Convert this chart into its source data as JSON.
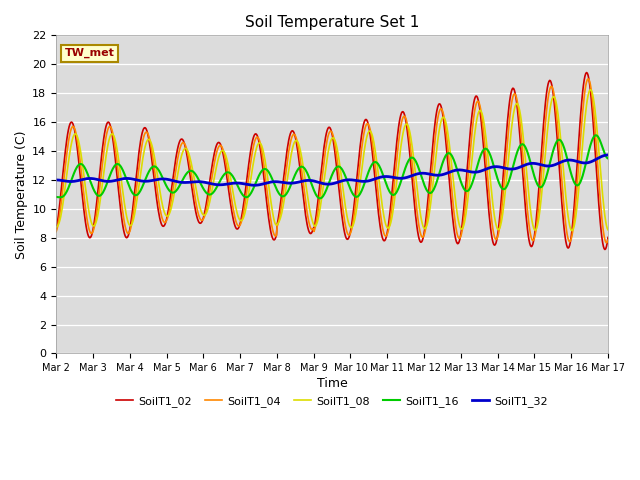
{
  "title": "Soil Temperature Set 1",
  "xlabel": "Time",
  "ylabel": "Soil Temperature (C)",
  "ylim": [
    0,
    22
  ],
  "yticks": [
    0,
    2,
    4,
    6,
    8,
    10,
    12,
    14,
    16,
    18,
    20,
    22
  ],
  "bg_color": "#dcdcdc",
  "fig_color": "#ffffff",
  "annotation_text": "TW_met",
  "annotation_color": "#990000",
  "annotation_bg": "#ffffcc",
  "annotation_border": "#aa8800",
  "series_colors": {
    "SoilT1_02": "#cc0000",
    "SoilT1_04": "#ff8800",
    "SoilT1_08": "#dddd00",
    "SoilT1_16": "#00cc00",
    "SoilT1_32": "#0000cc"
  },
  "series_linewidths": {
    "SoilT1_02": 1.2,
    "SoilT1_04": 1.2,
    "SoilT1_08": 1.2,
    "SoilT1_16": 1.5,
    "SoilT1_32": 2.0
  },
  "xtick_labels": [
    "Mar 2",
    "Mar 3",
    "Mar 4",
    "Mar 5",
    "Mar 6",
    "Mar 7",
    "Mar 8",
    "Mar 9",
    "Mar 10",
    "Mar 11",
    "Mar 12",
    "Mar 13",
    "Mar 14",
    "Mar 15",
    "Mar 16",
    "Mar 17"
  ],
  "legend_entries": [
    "SoilT1_02",
    "SoilT1_04",
    "SoilT1_08",
    "SoilT1_16",
    "SoilT1_32"
  ]
}
